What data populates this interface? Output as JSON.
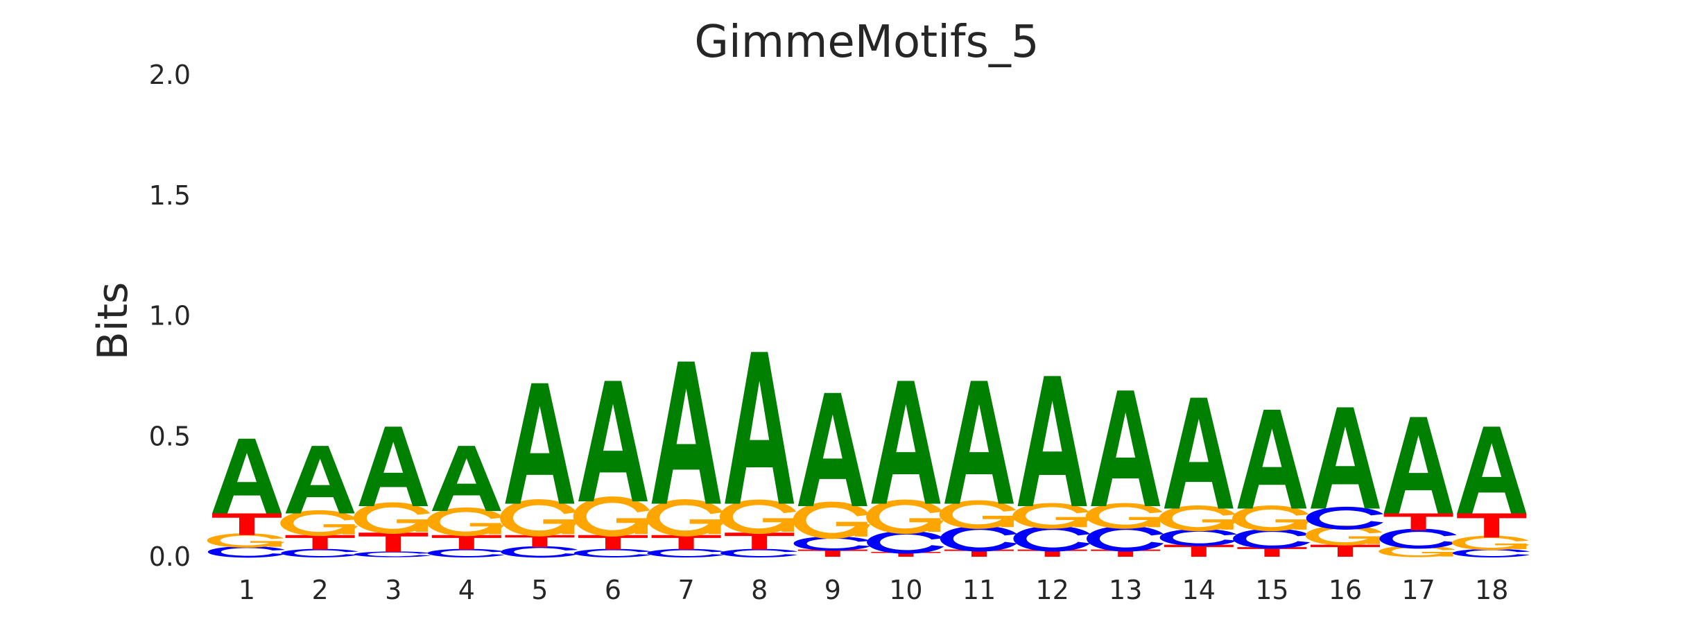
{
  "chart_data": {
    "type": "sequence_logo",
    "title": "GimmeMotifs_5",
    "xlabel": "",
    "ylabel": "Bits",
    "ylim": [
      0,
      2.0
    ],
    "yticks": [
      "0.0",
      "0.5",
      "1.0",
      "1.5",
      "2.0"
    ],
    "positions": [
      "1",
      "2",
      "3",
      "4",
      "5",
      "6",
      "7",
      "8",
      "9",
      "10",
      "11",
      "12",
      "13",
      "14",
      "15",
      "16",
      "17",
      "18"
    ],
    "colors": {
      "A": "#008000",
      "C": "#0000ff",
      "G": "#ffa500",
      "T": "#ff0000"
    },
    "grid": false,
    "stacks": [
      [
        {
          "letter": "C",
          "height": 0.04
        },
        {
          "letter": "G",
          "height": 0.05
        },
        {
          "letter": "T",
          "height": 0.09
        },
        {
          "letter": "A",
          "height": 0.31
        }
      ],
      [
        {
          "letter": "C",
          "height": 0.03
        },
        {
          "letter": "T",
          "height": 0.06
        },
        {
          "letter": "G",
          "height": 0.09
        },
        {
          "letter": "A",
          "height": 0.28
        }
      ],
      [
        {
          "letter": "C",
          "height": 0.02
        },
        {
          "letter": "T",
          "height": 0.08
        },
        {
          "letter": "G",
          "height": 0.11
        },
        {
          "letter": "A",
          "height": 0.33
        }
      ],
      [
        {
          "letter": "C",
          "height": 0.03
        },
        {
          "letter": "T",
          "height": 0.06
        },
        {
          "letter": "G",
          "height": 0.1
        },
        {
          "letter": "A",
          "height": 0.27
        }
      ],
      [
        {
          "letter": "C",
          "height": 0.04
        },
        {
          "letter": "T",
          "height": 0.05
        },
        {
          "letter": "G",
          "height": 0.13
        },
        {
          "letter": "A",
          "height": 0.5
        }
      ],
      [
        {
          "letter": "C",
          "height": 0.03
        },
        {
          "letter": "T",
          "height": 0.06
        },
        {
          "letter": "G",
          "height": 0.14
        },
        {
          "letter": "A",
          "height": 0.5
        }
      ],
      [
        {
          "letter": "C",
          "height": 0.03
        },
        {
          "letter": "T",
          "height": 0.06
        },
        {
          "letter": "G",
          "height": 0.13
        },
        {
          "letter": "A",
          "height": 0.59
        }
      ],
      [
        {
          "letter": "C",
          "height": 0.03
        },
        {
          "letter": "T",
          "height": 0.07
        },
        {
          "letter": "G",
          "height": 0.12
        },
        {
          "letter": "A",
          "height": 0.63
        }
      ],
      [
        {
          "letter": "T",
          "height": 0.03
        },
        {
          "letter": "C",
          "height": 0.05
        },
        {
          "letter": "G",
          "height": 0.13
        },
        {
          "letter": "A",
          "height": 0.47
        }
      ],
      [
        {
          "letter": "T",
          "height": 0.02
        },
        {
          "letter": "C",
          "height": 0.08
        },
        {
          "letter": "G",
          "height": 0.12
        },
        {
          "letter": "A",
          "height": 0.51
        }
      ],
      [
        {
          "letter": "T",
          "height": 0.03
        },
        {
          "letter": "C",
          "height": 0.09
        },
        {
          "letter": "G",
          "height": 0.1
        },
        {
          "letter": "A",
          "height": 0.51
        }
      ],
      [
        {
          "letter": "T",
          "height": 0.03
        },
        {
          "letter": "C",
          "height": 0.09
        },
        {
          "letter": "G",
          "height": 0.09
        },
        {
          "letter": "A",
          "height": 0.54
        }
      ],
      [
        {
          "letter": "T",
          "height": 0.03
        },
        {
          "letter": "C",
          "height": 0.09
        },
        {
          "letter": "G",
          "height": 0.09
        },
        {
          "letter": "A",
          "height": 0.48
        }
      ],
      [
        {
          "letter": "T",
          "height": 0.05
        },
        {
          "letter": "C",
          "height": 0.06
        },
        {
          "letter": "G",
          "height": 0.09
        },
        {
          "letter": "A",
          "height": 0.46
        }
      ],
      [
        {
          "letter": "T",
          "height": 0.04
        },
        {
          "letter": "C",
          "height": 0.07
        },
        {
          "letter": "G",
          "height": 0.09
        },
        {
          "letter": "A",
          "height": 0.41
        }
      ],
      [
        {
          "letter": "T",
          "height": 0.05
        },
        {
          "letter": "G",
          "height": 0.07
        },
        {
          "letter": "C",
          "height": 0.08
        },
        {
          "letter": "A",
          "height": 0.42
        }
      ],
      [
        {
          "letter": "G",
          "height": 0.04
        },
        {
          "letter": "C",
          "height": 0.07
        },
        {
          "letter": "T",
          "height": 0.07
        },
        {
          "letter": "A",
          "height": 0.4
        }
      ],
      [
        {
          "letter": "C",
          "height": 0.03
        },
        {
          "letter": "G",
          "height": 0.05
        },
        {
          "letter": "T",
          "height": 0.1
        },
        {
          "letter": "A",
          "height": 0.36
        }
      ]
    ]
  }
}
